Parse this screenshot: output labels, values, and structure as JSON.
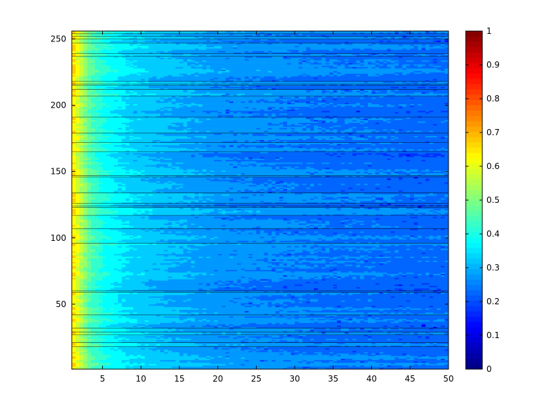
{
  "chart_data": {
    "type": "heatmap",
    "subtype": "filled-contour",
    "title": "",
    "xlabel": "",
    "ylabel": "",
    "xlim": [
      1,
      50
    ],
    "ylim": [
      1,
      256
    ],
    "x_ticks": [
      5,
      10,
      15,
      20,
      25,
      30,
      35,
      40,
      45,
      50
    ],
    "y_ticks": [
      50,
      100,
      150,
      200,
      250
    ],
    "colorbar": {
      "colormap": "jet",
      "range": [
        0,
        1
      ],
      "ticks": [
        0,
        0.1,
        0.2,
        0.3,
        0.4,
        0.5,
        0.6,
        0.7,
        0.8,
        0.9,
        1
      ],
      "tick_labels": [
        "0",
        "0.1",
        "0.2",
        "0.3",
        "0.4",
        "0.5",
        "0.6",
        "0.7",
        "0.8",
        "0.9",
        "1"
      ]
    },
    "contour_levels": [
      0.1,
      0.15,
      0.2,
      0.25,
      0.3,
      0.35,
      0.4,
      0.45,
      0.5,
      0.55,
      0.6,
      0.65,
      0.7
    ],
    "value_profile_along_x": {
      "x": [
        1,
        2,
        3,
        5,
        8,
        12,
        16,
        20,
        25,
        30,
        35,
        40,
        45,
        50
      ],
      "typical_value": [
        0.64,
        0.55,
        0.46,
        0.39,
        0.34,
        0.31,
        0.29,
        0.27,
        0.26,
        0.25,
        0.24,
        0.24,
        0.23,
        0.23
      ]
    },
    "grid": false
  }
}
